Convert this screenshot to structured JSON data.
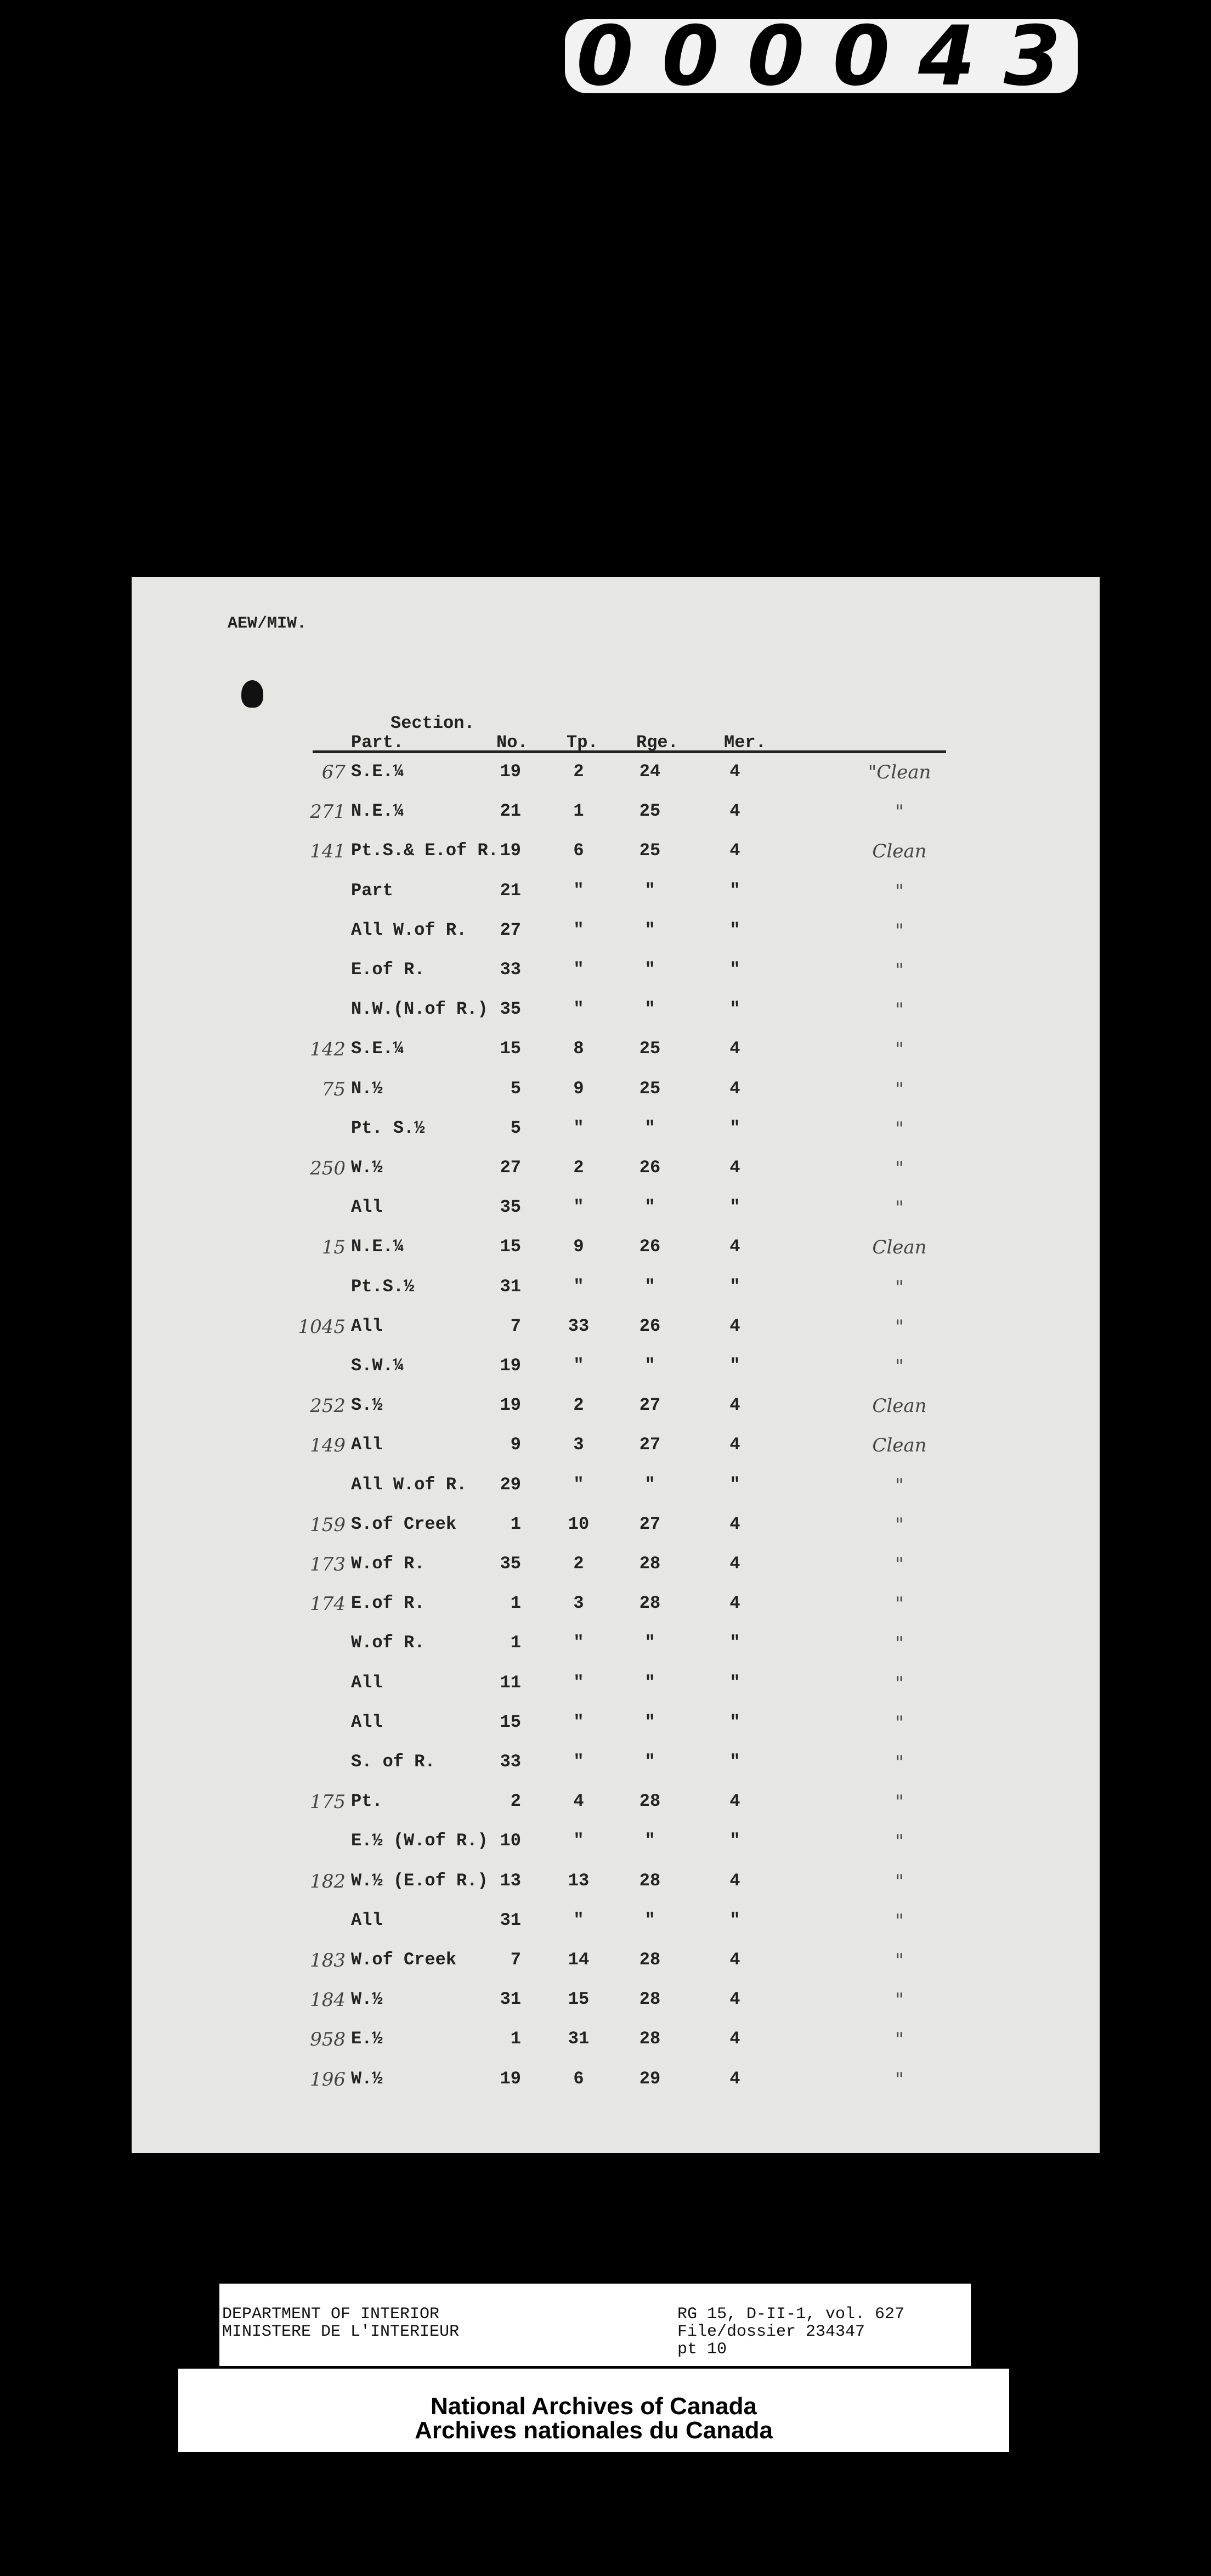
{
  "frame_number": [
    "0",
    "0",
    "0",
    "0",
    "4",
    "3"
  ],
  "document": {
    "reference": "AEW/MIW.",
    "headers": {
      "section": "Section.",
      "part": "Part.",
      "no": "No.",
      "tp": "Tp.",
      "rge": "Rge.",
      "mer": "Mer."
    },
    "rows": [
      {
        "hand": "67",
        "part": "S.E.¼",
        "no": "19",
        "tp": "2",
        "rge": "24",
        "mer": "4",
        "remark": "\"Clean"
      },
      {
        "hand": "271",
        "part": "N.E.¼",
        "no": "21",
        "tp": "1",
        "rge": "25",
        "mer": "4",
        "remark": "\""
      },
      {
        "hand": "141",
        "part": "Pt.S.& E.of R.",
        "no": "19",
        "tp": "6",
        "rge": "25",
        "mer": "4",
        "remark": "Clean"
      },
      {
        "hand": "",
        "part": "Part",
        "no": "21",
        "tp": "\"",
        "rge": "\"",
        "mer": "\"",
        "remark": "\""
      },
      {
        "hand": "",
        "part": "All W.of R.",
        "no": "27",
        "tp": "\"",
        "rge": "\"",
        "mer": "\"",
        "remark": "\""
      },
      {
        "hand": "",
        "part": "E.of R.",
        "no": "33",
        "tp": "\"",
        "rge": "\"",
        "mer": "\"",
        "remark": "\""
      },
      {
        "hand": "",
        "part": "N.W.(N.of R.)",
        "no": "35",
        "tp": "\"",
        "rge": "\"",
        "mer": "\"",
        "remark": "\""
      },
      {
        "hand": "142",
        "part": "S.E.¼",
        "no": "15",
        "tp": "8",
        "rge": "25",
        "mer": "4",
        "remark": "\""
      },
      {
        "hand": "75",
        "part": "N.½",
        "no": "5",
        "tp": "9",
        "rge": "25",
        "mer": "4",
        "remark": "\""
      },
      {
        "hand": "",
        "part": "Pt. S.½",
        "no": "5",
        "tp": "\"",
        "rge": "\"",
        "mer": "\"",
        "remark": "\""
      },
      {
        "hand": "250",
        "part": "W.½",
        "no": "27",
        "tp": "2",
        "rge": "26",
        "mer": "4",
        "remark": "\""
      },
      {
        "hand": "",
        "part": "All",
        "no": "35",
        "tp": "\"",
        "rge": "\"",
        "mer": "\"",
        "remark": "\""
      },
      {
        "hand": "15",
        "part": "N.E.¼",
        "no": "15",
        "tp": "9",
        "rge": "26",
        "mer": "4",
        "remark": "Clean"
      },
      {
        "hand": "",
        "part": "Pt.S.½",
        "no": "31",
        "tp": "\"",
        "rge": "\"",
        "mer": "\"",
        "remark": "\""
      },
      {
        "hand": "1045",
        "part": "All",
        "no": "7",
        "tp": "33",
        "rge": "26",
        "mer": "4",
        "remark": "\""
      },
      {
        "hand": "",
        "part": "S.W.¼",
        "no": "19",
        "tp": "\"",
        "rge": "\"",
        "mer": "\"",
        "remark": "\""
      },
      {
        "hand": "252",
        "part": "S.½",
        "no": "19",
        "tp": "2",
        "rge": "27",
        "mer": "4",
        "remark": "Clean"
      },
      {
        "hand": "149",
        "part": "All",
        "no": "9",
        "tp": "3",
        "rge": "27",
        "mer": "4",
        "remark": "Clean"
      },
      {
        "hand": "",
        "part": "All W.of R.",
        "no": "29",
        "tp": "\"",
        "rge": "\"",
        "mer": "\"",
        "remark": "\""
      },
      {
        "hand": "159",
        "part": "S.of Creek",
        "no": "1",
        "tp": "10",
        "rge": "27",
        "mer": "4",
        "remark": "\""
      },
      {
        "hand": "173",
        "part": "W.of R.",
        "no": "35",
        "tp": "2",
        "rge": "28",
        "mer": "4",
        "remark": "\""
      },
      {
        "hand": "174",
        "part": "E.of R.",
        "no": "1",
        "tp": "3",
        "rge": "28",
        "mer": "4",
        "remark": "\""
      },
      {
        "hand": "",
        "part": "W.of R.",
        "no": "1",
        "tp": "\"",
        "rge": "\"",
        "mer": "\"",
        "remark": "\""
      },
      {
        "hand": "",
        "part": "All",
        "no": "11",
        "tp": "\"",
        "rge": "\"",
        "mer": "\"",
        "remark": "\""
      },
      {
        "hand": "",
        "part": "All",
        "no": "15",
        "tp": "\"",
        "rge": "\"",
        "mer": "\"",
        "remark": "\""
      },
      {
        "hand": "",
        "part": "S. of R.",
        "no": "33",
        "tp": "\"",
        "rge": "\"",
        "mer": "\"",
        "remark": "\""
      },
      {
        "hand": "175",
        "part": "Pt.",
        "no": "2",
        "tp": "4",
        "rge": "28",
        "mer": "4",
        "remark": "\""
      },
      {
        "hand": "",
        "part": "E.½ (W.of R.)",
        "no": "10",
        "tp": "\"",
        "rge": "\"",
        "mer": "\"",
        "remark": "\""
      },
      {
        "hand": "182",
        "part": "W.½ (E.of R.)",
        "no": "13",
        "tp": "13",
        "rge": "28",
        "mer": "4",
        "remark": "\""
      },
      {
        "hand": "",
        "part": "All",
        "no": "31",
        "tp": "\"",
        "rge": "\"",
        "mer": "\"",
        "remark": "\""
      },
      {
        "hand": "183",
        "part": "W.of Creek",
        "no": "7",
        "tp": "14",
        "rge": "28",
        "mer": "4",
        "remark": "\""
      },
      {
        "hand": "184",
        "part": "W.½",
        "no": "31",
        "tp": "15",
        "rge": "28",
        "mer": "4",
        "remark": "\""
      },
      {
        "hand": "958",
        "part": "E.½",
        "no": "1",
        "tp": "31",
        "rge": "28",
        "mer": "4",
        "remark": "\""
      },
      {
        "hand": "196",
        "part": "W.½",
        "no": "19",
        "tp": "6",
        "rge": "29",
        "mer": "4",
        "remark": "\""
      }
    ]
  },
  "label": {
    "dept_en": "DEPARTMENT OF INTERIOR",
    "dept_fr": "MINISTERE DE L'INTERIEUR",
    "ref_line1": "RG 15, D-II-1, vol. 627",
    "ref_line2": "File/dossier 234347",
    "ref_line3": "pt 10",
    "archive_en": "National Archives of Canada",
    "archive_fr": "Archives nationales du Canada"
  }
}
